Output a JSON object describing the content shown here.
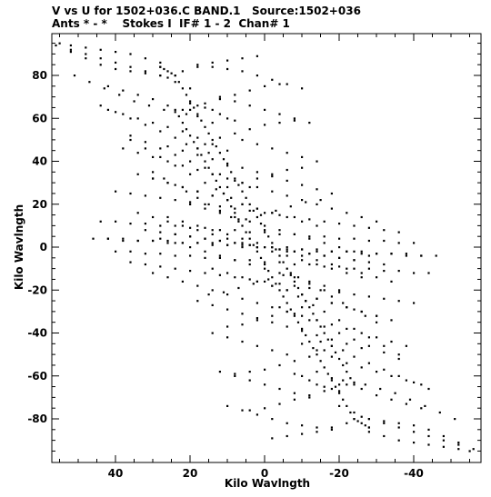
{
  "chart_data": {
    "type": "scatter",
    "title": "V vs U for 1502+036.C BAND.1   Source:1502+036",
    "subtitle": "Ants * - *    Stokes I  IF# 1 - 2  Chan# 1",
    "xlabel": "Kilo Wavlngth",
    "ylabel": "Kilo Wavlngth",
    "xlim": [
      57,
      -58
    ],
    "ylim": [
      -98,
      98
    ],
    "x_ticks": [
      40,
      20,
      0,
      -20,
      -40
    ],
    "x_tick_labels": [
      "40",
      "20",
      "0",
      "-20",
      "-40"
    ],
    "y_ticks": [
      80,
      60,
      40,
      20,
      0,
      -20,
      -40,
      -60,
      -80
    ],
    "y_tick_labels": [
      "80",
      "60",
      "40",
      "20",
      "0",
      "-20",
      "-40",
      "-60",
      "-80"
    ],
    "x_axis_reversed": true,
    "grid": false,
    "legend": "none",
    "marker_color": "#000000",
    "series": [
      {
        "x": [
          56,
          52,
          48,
          44,
          40,
          36,
          32,
          28,
          26
        ],
        "y": [
          94,
          91,
          88,
          85,
          83,
          82,
          81,
          80,
          79
        ]
      },
      {
        "x": [
          51,
          47,
          43,
          39,
          35,
          31,
          27,
          24,
          21
        ],
        "y": [
          80,
          77,
          74,
          71,
          68,
          66,
          64,
          63,
          62
        ]
      },
      {
        "x": [
          44,
          40,
          36,
          32,
          28,
          24,
          21,
          18,
          15
        ],
        "y": [
          66,
          63,
          60,
          57,
          54,
          51,
          48,
          46,
          44
        ]
      },
      {
        "x": [
          36,
          32,
          28,
          24,
          20,
          16,
          13,
          11,
          9
        ],
        "y": [
          50,
          46,
          42,
          38,
          34,
          30,
          27,
          25,
          23
        ]
      },
      {
        "x": [
          30,
          27,
          24,
          21,
          18,
          15,
          12,
          9,
          7
        ],
        "y": [
          35,
          32,
          29,
          26,
          23,
          20,
          17,
          14,
          12
        ]
      },
      {
        "x": [
          24,
          25,
          26,
          27,
          28,
          28
        ],
        "y": [
          80,
          81,
          82,
          83,
          84,
          84
        ]
      },
      {
        "x": [
          20,
          18,
          16,
          14,
          12,
          10,
          8
        ],
        "y": [
          67,
          66,
          65,
          64,
          62,
          60,
          59
        ]
      },
      {
        "x": [
          22,
          18,
          14,
          10,
          6,
          2
        ],
        "y": [
          82,
          84,
          86,
          87,
          88,
          89
        ]
      },
      {
        "x": [
          20,
          16,
          12,
          8,
          4,
          0,
          -4
        ],
        "y": [
          64,
          67,
          69,
          71,
          73,
          75,
          76
        ]
      },
      {
        "x": [
          16,
          12,
          8,
          4,
          0,
          -4,
          -8
        ],
        "y": [
          48,
          51,
          53,
          55,
          57,
          58,
          59
        ]
      },
      {
        "x": [
          10,
          6,
          2,
          -2,
          -6,
          -10
        ],
        "y": [
          28,
          30,
          32,
          34,
          36,
          37
        ]
      },
      {
        "x": [
          5,
          1,
          -3,
          -7,
          -11,
          -15
        ],
        "y": [
          13,
          15,
          17,
          19,
          21,
          22
        ]
      },
      {
        "x": [
          24,
          23,
          22,
          21,
          20,
          19,
          18,
          17,
          16,
          15,
          14,
          13,
          12,
          11,
          10,
          9,
          8,
          7,
          6,
          5,
          4,
          3,
          2,
          1,
          0,
          -1,
          -2,
          -3,
          -4,
          -5,
          -6,
          -7,
          -8,
          -9,
          -10,
          -11,
          -12,
          -13,
          -14,
          -15,
          -16,
          -17,
          -18,
          -19,
          -20,
          -21,
          -22,
          -23,
          -24
        ],
        "y": [
          80,
          77,
          74,
          71,
          68,
          65,
          62,
          59,
          56,
          53,
          50,
          47,
          44,
          41,
          38,
          35,
          32,
          29,
          26,
          23,
          20,
          17,
          14,
          11,
          8,
          5,
          2,
          -1,
          -4,
          -7,
          -10,
          -13,
          -16,
          -19,
          -22,
          -25,
          -28,
          -31,
          -34,
          -37,
          -40,
          -43,
          -46,
          -49,
          -52,
          -55,
          -58,
          -61,
          -64
        ]
      },
      {
        "x": [
          42,
          38,
          34,
          30,
          26,
          22,
          18,
          14,
          10,
          6,
          2,
          -2,
          -6,
          -10,
          -14,
          -18,
          -22,
          -26,
          -30,
          -34,
          -38,
          -42,
          -46
        ],
        "y": [
          4,
          4,
          3,
          3,
          3,
          2,
          2,
          2,
          1,
          1,
          0,
          0,
          0,
          -1,
          -1,
          -2,
          -2,
          -2,
          -3,
          -3,
          -3,
          -4,
          -4
        ]
      },
      {
        "x": [
          40,
          36,
          32,
          28,
          24,
          20,
          16,
          12,
          8,
          4,
          0,
          -4,
          -8,
          -12,
          -16,
          -20,
          -24,
          -28,
          -32,
          -36,
          -40,
          -44
        ],
        "y": [
          -2,
          -2,
          -3,
          -3,
          -4,
          -4,
          -5,
          -5,
          -6,
          -6,
          -7,
          -7,
          -8,
          -8,
          -9,
          -9,
          -10,
          -10,
          -11,
          -11,
          -12,
          -12
        ]
      },
      {
        "x": [
          36,
          32,
          28,
          24,
          20,
          16,
          12,
          8,
          4,
          0,
          -4,
          -8,
          -12,
          -16,
          -20,
          -24,
          -28,
          -32,
          -36,
          -40
        ],
        "y": [
          -7,
          -8,
          -9,
          -10,
          -11,
          -12,
          -13,
          -14,
          -15,
          -16,
          -17,
          -18,
          -19,
          -20,
          -21,
          -22,
          -23,
          -24,
          -25,
          -26
        ]
      },
      {
        "x": [
          30,
          26,
          22,
          18,
          14,
          10,
          6,
          2,
          -2,
          -6,
          -10,
          -14,
          -18,
          -22,
          -26,
          -30,
          -34,
          -38
        ],
        "y": [
          -12,
          -14,
          -16,
          -18,
          -20,
          -22,
          -24,
          -26,
          -28,
          -30,
          -32,
          -34,
          -36,
          -38,
          -40,
          -42,
          -44,
          -46
        ]
      },
      {
        "x": [
          26,
          22,
          18,
          14,
          10,
          6,
          2,
          -2,
          -6,
          -10,
          -14,
          -18,
          -22,
          -26,
          -30,
          -34
        ],
        "y": [
          14,
          12,
          10,
          8,
          6,
          4,
          2,
          0,
          -2,
          -4,
          -6,
          -8,
          -10,
          -12,
          -14,
          -16
        ]
      },
      {
        "x": [
          20,
          16,
          12,
          8,
          4,
          0,
          -4,
          -8,
          -12,
          -16,
          -20,
          -24,
          -28
        ],
        "y": [
          20,
          18,
          16,
          14,
          12,
          10,
          8,
          6,
          4,
          2,
          0,
          -2,
          -4
        ]
      },
      {
        "x": [
          2,
          -2,
          -6,
          -10,
          -14,
          -18,
          -22,
          -26,
          -30,
          -34
        ],
        "y": [
          -16,
          -18,
          -20,
          -22,
          -24,
          -26,
          -28,
          -30,
          -32,
          -34
        ]
      },
      {
        "x": [
          -4,
          -8,
          -12,
          -16,
          -20,
          -24,
          -28,
          -32,
          -36
        ],
        "y": [
          -28,
          -31,
          -34,
          -37,
          -40,
          -43,
          -46,
          -49,
          -52
        ]
      },
      {
        "x": [
          -10,
          -14,
          -18,
          -22,
          -26,
          -30,
          -34,
          -38,
          -42
        ],
        "y": [
          -45,
          -48,
          -51,
          -54,
          -56,
          -58,
          -60,
          -62,
          -64
        ]
      },
      {
        "x": [
          -14,
          -18,
          -22,
          -26,
          -30,
          -34,
          -38,
          -42
        ],
        "y": [
          -58,
          -61,
          -64,
          -66,
          -69,
          -71,
          -73,
          -75
        ]
      },
      {
        "x": [
          -20,
          -24,
          -28,
          -32,
          -36,
          -40,
          -44,
          -48,
          -52
        ],
        "y": [
          -74,
          -77,
          -80,
          -82,
          -84,
          -86,
          -88,
          -90,
          -92
        ]
      },
      {
        "x": [
          -28,
          -32,
          -36,
          -40,
          -44,
          -48,
          -52,
          -55
        ],
        "y": [
          -86,
          -88,
          -90,
          -91,
          -92,
          -93,
          -94,
          -95
        ]
      },
      {
        "x": [
          14,
          10,
          6,
          2,
          -2,
          -6
        ],
        "y": [
          -40,
          -42,
          -44,
          -46,
          -48,
          -50
        ]
      },
      {
        "x": [
          12,
          8,
          4,
          0,
          -4,
          -8,
          -12
        ],
        "y": [
          -58,
          -60,
          -62,
          -64,
          -66,
          -68,
          -70
        ]
      },
      {
        "x": [
          10,
          6,
          2,
          -2,
          -6,
          -10,
          -14,
          -18
        ],
        "y": [
          -74,
          -76,
          -78,
          -80,
          -82,
          -83,
          -84,
          -85
        ]
      },
      {
        "x": [
          18,
          14,
          10,
          6,
          2,
          -2,
          -6,
          -10,
          -14,
          -18,
          -22,
          -26
        ],
        "y": [
          -25,
          -27,
          -29,
          -31,
          -33,
          -35,
          -37,
          -39,
          -41,
          -43,
          -45,
          -47
        ]
      },
      {
        "x": [
          14,
          10,
          6,
          2,
          -2,
          -6,
          -10,
          -14,
          -18,
          -22,
          -26,
          -30
        ],
        "y": [
          -10,
          -12,
          -14,
          -16,
          -18,
          -20,
          -22,
          -24,
          -26,
          -28,
          -30,
          -32
        ]
      },
      {
        "x": [
          32,
          28,
          24,
          20,
          16,
          12,
          8,
          4,
          0,
          -4,
          -8,
          -12,
          -16,
          -20,
          -24
        ],
        "y": [
          8,
          7,
          6,
          5,
          4,
          3,
          2,
          1,
          0,
          -1,
          -2,
          -3,
          -4,
          -5,
          -6
        ]
      }
    ]
  }
}
